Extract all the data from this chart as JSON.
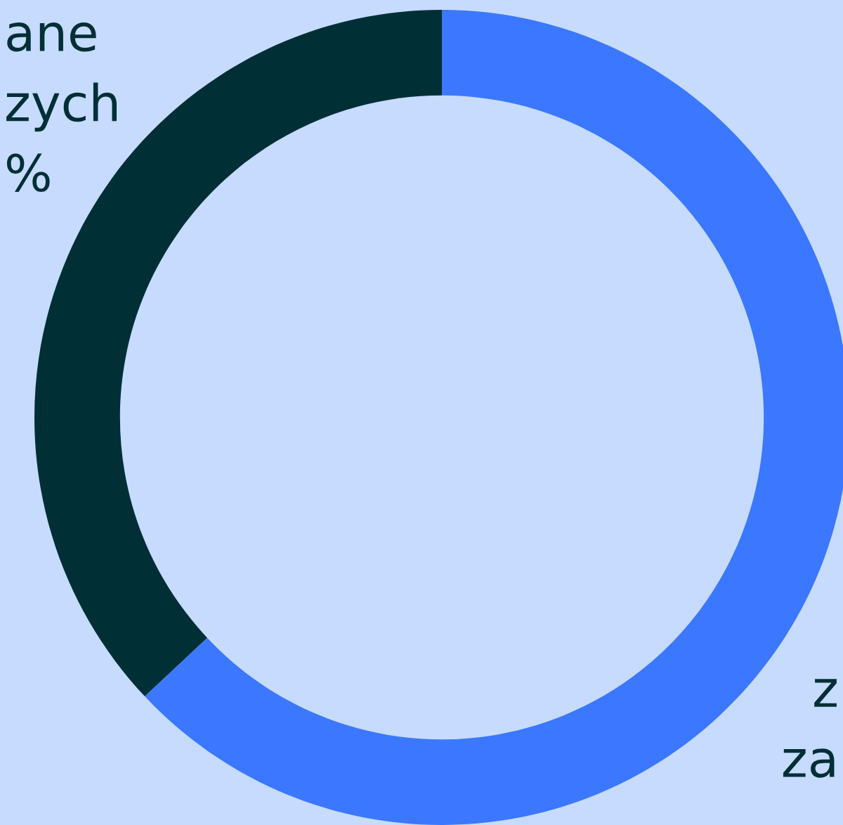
{
  "chart_data": {
    "type": "donut",
    "categories": [
      null,
      null
    ],
    "values": [
      37,
      63
    ],
    "colors": [
      "#002f36",
      "#3b78ff"
    ],
    "annotations": [
      "ane",
      "zych",
      "%",
      "z",
      "za"
    ]
  }
}
